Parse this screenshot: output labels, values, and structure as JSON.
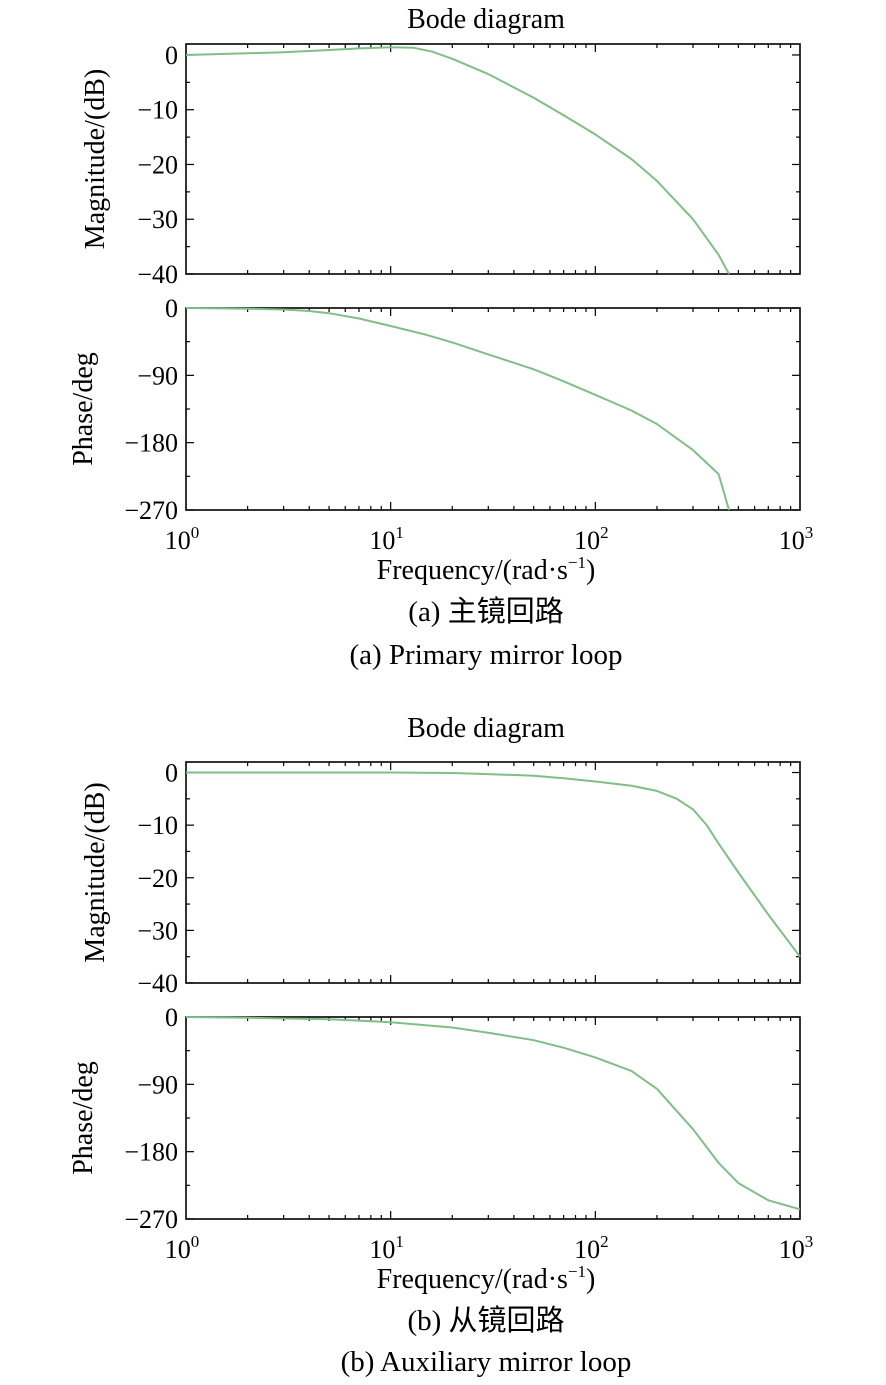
{
  "chart_data": [
    {
      "type": "line",
      "id": "a",
      "title": "Bode diagram",
      "xlabel": "Frequency/(rad·s⁻¹)",
      "x_scale": "log",
      "x_ticks": [
        "10^0",
        "10^1",
        "10^2",
        "10^3"
      ],
      "xlim": [
        1,
        1000
      ],
      "caption_cn": "(a) 主镜回路",
      "caption_en": "(a) Primary mirror loop",
      "magnitude": {
        "ylabel": "Magnitude/(dB)",
        "ylim": [
          -40,
          2
        ],
        "yticks": [
          "0",
          "−10",
          "−20",
          "−30",
          "−40"
        ],
        "series": [
          {
            "name": "magnitude",
            "x": [
              1,
              2,
              3,
              5,
              7,
              10,
              13,
              16,
              20,
              30,
              50,
              70,
              100,
              150,
              200,
              300,
              400,
              450
            ],
            "y": [
              0,
              0.3,
              0.5,
              0.9,
              1.2,
              1.4,
              1.3,
              0.6,
              -0.7,
              -3.5,
              -7.8,
              -11,
              -14.5,
              -19,
              -23,
              -30,
              -36.5,
              -40
            ]
          }
        ]
      },
      "phase": {
        "ylabel": "Phase/deg",
        "ylim": [
          -270,
          0
        ],
        "yticks": [
          "0",
          "−90",
          "−180",
          "−270"
        ],
        "series": [
          {
            "name": "phase",
            "x": [
              1,
              2,
              3,
              4,
              5,
              7,
              10,
              15,
              20,
              30,
              50,
              70,
              100,
              150,
              200,
              300,
              400,
              450
            ],
            "y": [
              0,
              -1,
              -2,
              -4,
              -7,
              -14,
              -24,
              -36,
              -46,
              -62,
              -82,
              -98,
              -116,
              -137,
              -155,
              -190,
              -222,
              -270
            ]
          }
        ]
      }
    },
    {
      "type": "line",
      "id": "b",
      "title": "Bode diagram",
      "xlabel": "Frequency/(rad·s⁻¹)",
      "x_scale": "log",
      "x_ticks": [
        "10^0",
        "10^1",
        "10^2",
        "10^3"
      ],
      "xlim": [
        1,
        1000
      ],
      "caption_cn": "(b) 从镜回路",
      "caption_en": "(b) Auxiliary mirror loop",
      "magnitude": {
        "ylabel": "Magnitude/(dB)",
        "ylim": [
          -40,
          2
        ],
        "yticks": [
          "0",
          "−10",
          "−20",
          "−30",
          "−40"
        ],
        "series": [
          {
            "name": "magnitude",
            "x": [
              1,
              3,
              10,
              20,
              30,
              50,
              70,
              100,
              150,
              200,
              250,
              300,
              350,
              400,
              500,
              700,
              1000
            ],
            "y": [
              0,
              0,
              0,
              -0.1,
              -0.3,
              -0.6,
              -1.1,
              -1.7,
              -2.5,
              -3.5,
              -5,
              -7,
              -10,
              -13.5,
              -19,
              -27,
              -35
            ]
          }
        ]
      },
      "phase": {
        "ylabel": "Phase/deg",
        "ylim": [
          -270,
          0
        ],
        "yticks": [
          "0",
          "−90",
          "−180",
          "−270"
        ],
        "series": [
          {
            "name": "phase",
            "x": [
              1,
              2,
              5,
              10,
              20,
              30,
              50,
              70,
              100,
              150,
              200,
              300,
              400,
              500,
              700,
              1000
            ],
            "y": [
              0,
              -1,
              -3,
              -7,
              -14,
              -21,
              -31,
              -41,
              -54,
              -72,
              -96,
              -150,
              -195,
              -222,
              -245,
              -257
            ]
          }
        ]
      }
    }
  ]
}
